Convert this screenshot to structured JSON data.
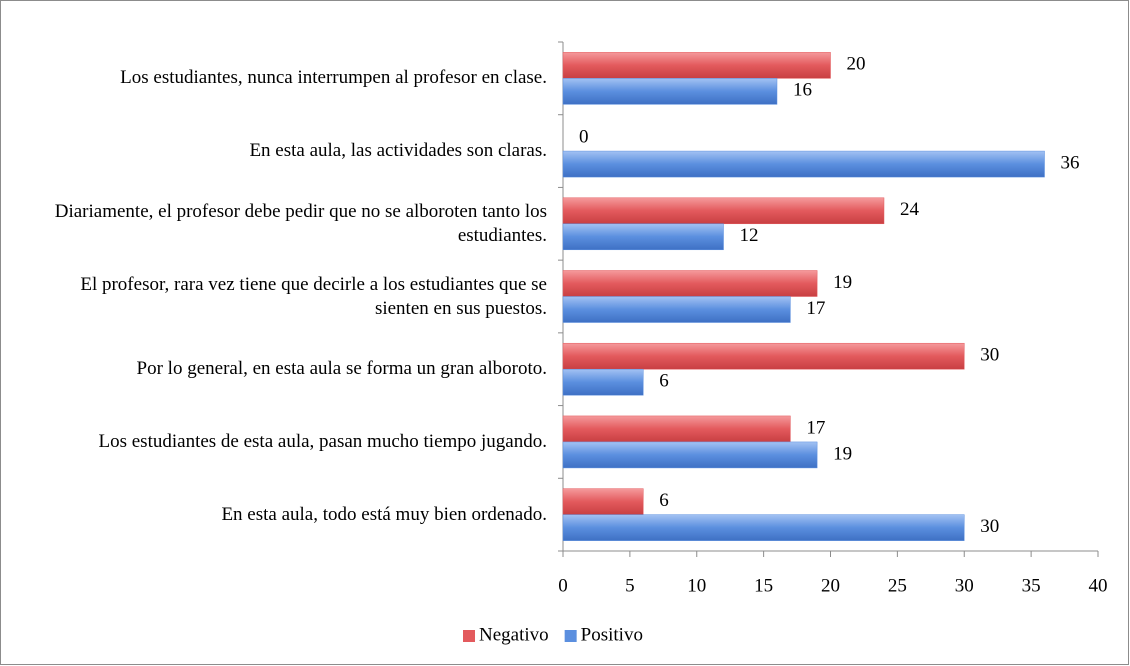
{
  "chart_data": {
    "type": "barh",
    "categories": [
      "Los estudiantes, nunca interrumpen al profesor en clase.",
      "En esta aula, las actividades son claras.",
      "Diariamente, el profesor debe pedir que no se alboroten tanto los estudiantes.",
      "El profesor, rara vez tiene que decirle a los estudiantes que se sienten en sus puestos.",
      "Por lo general, en esta aula se forma un gran alboroto.",
      "Los estudiantes de esta aula, pasan mucho tiempo jugando.",
      "En esta aula, todo está muy bien ordenado."
    ],
    "series": [
      {
        "name": "Negativo",
        "color": "#e35a5d",
        "values": [
          20,
          0,
          24,
          19,
          30,
          17,
          6
        ]
      },
      {
        "name": "Positivo",
        "color": "#5b8fdf",
        "values": [
          16,
          36,
          12,
          17,
          6,
          19,
          30
        ]
      }
    ],
    "xlim": [
      0,
      40
    ],
    "xticks": [
      0,
      5,
      10,
      15,
      20,
      25,
      30,
      35,
      40
    ],
    "legend": "bottom"
  }
}
